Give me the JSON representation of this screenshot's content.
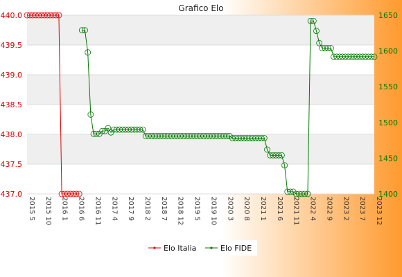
{
  "chart_data": {
    "type": "line",
    "title": "Grafico Elo",
    "xlabel": "",
    "ylabel_left": "",
    "ylabel_right": "",
    "ylim_left": [
      437.0,
      440.0
    ],
    "ylim_right": [
      1400,
      1650
    ],
    "yticks_left": [
      "437.0",
      "437.5",
      "438.0",
      "438.5",
      "439.0",
      "439.5",
      "440.0"
    ],
    "yticks_right": [
      "1400",
      "1450",
      "1500",
      "1550",
      "1600",
      "1650"
    ],
    "xticks": [
      "2015 5",
      "2015 10",
      "2016 1",
      "2016 6",
      "2016 11",
      "2017 4",
      "2017 9",
      "2018 2",
      "2018 7",
      "2018 12",
      "2019 5",
      "2019 10",
      "2020 3",
      "2020 8",
      "2021 1",
      "2021 6",
      "2021 11",
      "2022 4",
      "2022 9",
      "2023 2",
      "2023 7",
      "2023 12"
    ],
    "grid": true,
    "legend_position": "bottom",
    "colors": {
      "elo_italia": "#dd0000",
      "elo_fide": "#007700",
      "label_left": "#dd0000",
      "label_right": "#007700",
      "band": "#efefef",
      "plot_bg": "#ffffff",
      "bg_light": "#ffffff",
      "bg_dark": "#ff9a2e"
    },
    "series": [
      {
        "name": "Elo Italia",
        "axis": "left",
        "points": [
          [
            0,
            440.0
          ],
          [
            1,
            440.0
          ],
          [
            2,
            440.0
          ],
          [
            3,
            440.0
          ],
          [
            4,
            440.0
          ],
          [
            5,
            440.0
          ],
          [
            6,
            440.0
          ],
          [
            7,
            440.0
          ],
          [
            8,
            440.0
          ],
          [
            9,
            440.0
          ],
          [
            10,
            440.0
          ],
          [
            11,
            440.0
          ],
          [
            12,
            437.0
          ],
          [
            13,
            437.0
          ],
          [
            14,
            437.0
          ],
          [
            15,
            437.0
          ],
          [
            16,
            437.0
          ],
          [
            17,
            437.0
          ],
          [
            18,
            437.0
          ]
        ]
      },
      {
        "name": "Elo FIDE",
        "axis": "right",
        "points": [
          [
            19,
            1629
          ],
          [
            20,
            1629
          ],
          [
            21,
            1598
          ],
          [
            22,
            1511
          ],
          [
            23,
            1484
          ],
          [
            24,
            1484
          ],
          [
            25,
            1484
          ],
          [
            26,
            1488
          ],
          [
            27,
            1488
          ],
          [
            28,
            1492
          ],
          [
            29,
            1486
          ],
          [
            30,
            1490
          ],
          [
            31,
            1490
          ],
          [
            32,
            1490
          ],
          [
            33,
            1490
          ],
          [
            34,
            1490
          ],
          [
            35,
            1490
          ],
          [
            36,
            1490
          ],
          [
            37,
            1490
          ],
          [
            38,
            1490
          ],
          [
            39,
            1490
          ],
          [
            40,
            1490
          ],
          [
            41,
            1481
          ],
          [
            42,
            1481
          ],
          [
            43,
            1481
          ],
          [
            44,
            1481
          ],
          [
            45,
            1481
          ],
          [
            46,
            1481
          ],
          [
            47,
            1481
          ],
          [
            48,
            1481
          ],
          [
            49,
            1481
          ],
          [
            50,
            1481
          ],
          [
            51,
            1481
          ],
          [
            52,
            1481
          ],
          [
            53,
            1481
          ],
          [
            54,
            1481
          ],
          [
            55,
            1481
          ],
          [
            56,
            1481
          ],
          [
            57,
            1481
          ],
          [
            58,
            1481
          ],
          [
            59,
            1481
          ],
          [
            60,
            1481
          ],
          [
            61,
            1481
          ],
          [
            62,
            1481
          ],
          [
            63,
            1481
          ],
          [
            64,
            1481
          ],
          [
            65,
            1481
          ],
          [
            66,
            1481
          ],
          [
            67,
            1481
          ],
          [
            68,
            1481
          ],
          [
            69,
            1481
          ],
          [
            70,
            1481
          ],
          [
            71,
            1478
          ],
          [
            72,
            1478
          ],
          [
            73,
            1478
          ],
          [
            74,
            1478
          ],
          [
            75,
            1478
          ],
          [
            76,
            1478
          ],
          [
            77,
            1478
          ],
          [
            78,
            1478
          ],
          [
            79,
            1478
          ],
          [
            80,
            1478
          ],
          [
            81,
            1478
          ],
          [
            82,
            1478
          ],
          [
            83,
            1462
          ],
          [
            84,
            1454
          ],
          [
            85,
            1454
          ],
          [
            86,
            1454
          ],
          [
            87,
            1454
          ],
          [
            88,
            1454
          ],
          [
            89,
            1440
          ],
          [
            90,
            1403
          ],
          [
            91,
            1403
          ],
          [
            92,
            1403
          ],
          [
            93,
            1400
          ],
          [
            94,
            1400
          ],
          [
            95,
            1400
          ],
          [
            96,
            1400
          ],
          [
            97,
            1400
          ],
          [
            98,
            1642
          ],
          [
            99,
            1642
          ],
          [
            100,
            1628
          ],
          [
            101,
            1611
          ],
          [
            102,
            1604
          ],
          [
            103,
            1604
          ],
          [
            104,
            1604
          ],
          [
            105,
            1604
          ],
          [
            106,
            1592
          ],
          [
            107,
            1592
          ],
          [
            108,
            1592
          ],
          [
            109,
            1592
          ],
          [
            110,
            1592
          ],
          [
            111,
            1592
          ],
          [
            112,
            1592
          ],
          [
            113,
            1592
          ],
          [
            114,
            1592
          ],
          [
            115,
            1592
          ],
          [
            116,
            1592
          ],
          [
            117,
            1592
          ],
          [
            118,
            1592
          ],
          [
            119,
            1592
          ],
          [
            120,
            1592
          ]
        ]
      }
    ]
  }
}
